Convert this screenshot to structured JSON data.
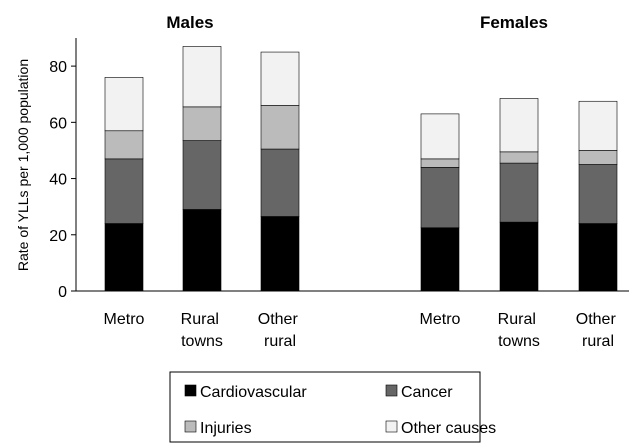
{
  "chart_data": {
    "type": "stacked_bar",
    "group_titles": [
      "Males",
      "Females"
    ],
    "categories": [
      "Metro",
      "Rural towns",
      "Other rural",
      "Metro",
      "Rural towns",
      "Other rural"
    ],
    "series": [
      {
        "name": "Cardiovascular",
        "color": "#000000",
        "values": [
          24,
          29,
          26.5,
          22.5,
          24.5,
          24
        ]
      },
      {
        "name": "Cancer",
        "color": "#666666",
        "values": [
          23,
          24.5,
          24,
          21.5,
          21,
          21
        ]
      },
      {
        "name": "Injuries",
        "color": "#bbbbbb",
        "values": [
          10,
          12,
          15.5,
          3,
          4,
          5
        ]
      },
      {
        "name": "Other causes",
        "color": "#f2f2f2",
        "values": [
          19,
          21.5,
          19,
          16,
          19,
          17.5
        ]
      }
    ],
    "y_label": "Rate of YLLs per 1,000 population",
    "ylim": [
      0,
      90
    ],
    "yticks": [
      0,
      20,
      40,
      60,
      80
    ]
  }
}
